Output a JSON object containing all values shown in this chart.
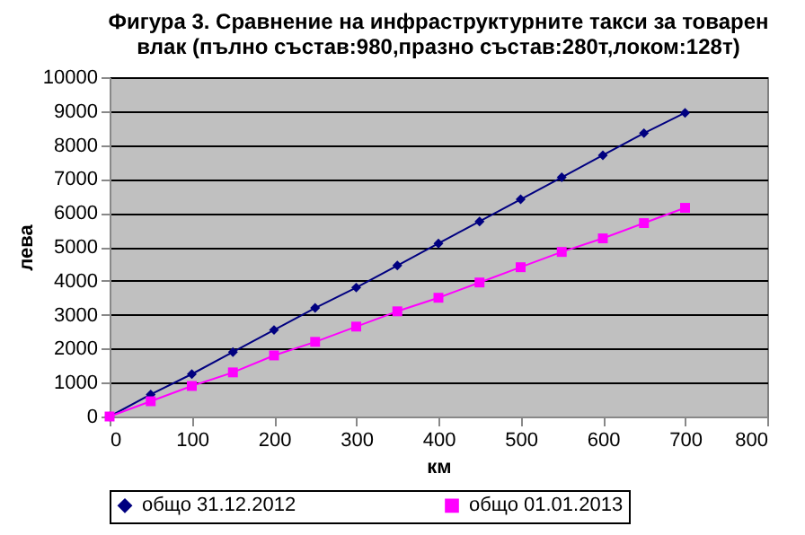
{
  "chart_data": {
    "type": "line",
    "title": [
      "Фигура 3. Сравнение на инфраструктурните такси за товарен",
      "влак (пълно състав:980,празно състав:280т,локом:128т)"
    ],
    "xlabel": "км",
    "ylabel": "лева",
    "x": [
      0,
      50,
      100,
      150,
      200,
      250,
      300,
      350,
      400,
      450,
      500,
      550,
      600,
      650,
      700
    ],
    "series": [
      {
        "name": "общо 31.12.2012",
        "color": "#000080",
        "marker": "diamond",
        "values": [
          0,
          650,
          1250,
          1900,
          2550,
          3200,
          3800,
          4450,
          5100,
          5750,
          6400,
          7050,
          7700,
          8350,
          8950
        ]
      },
      {
        "name": "общо 01.01.2013",
        "color": "#ff00ff",
        "marker": "square",
        "values": [
          0,
          450,
          900,
          1300,
          1800,
          2200,
          2650,
          3100,
          3500,
          3950,
          4400,
          4850,
          5250,
          5700,
          6150
        ]
      }
    ],
    "xlim": [
      0,
      800
    ],
    "xticks": [
      0,
      100,
      200,
      300,
      400,
      500,
      600,
      700,
      800
    ],
    "ylim": [
      0,
      10000
    ],
    "yticks": [
      0,
      1000,
      2000,
      3000,
      4000,
      5000,
      6000,
      7000,
      8000,
      9000,
      10000
    ],
    "grid": "y",
    "legend": "bottom",
    "line_style": "solid"
  }
}
